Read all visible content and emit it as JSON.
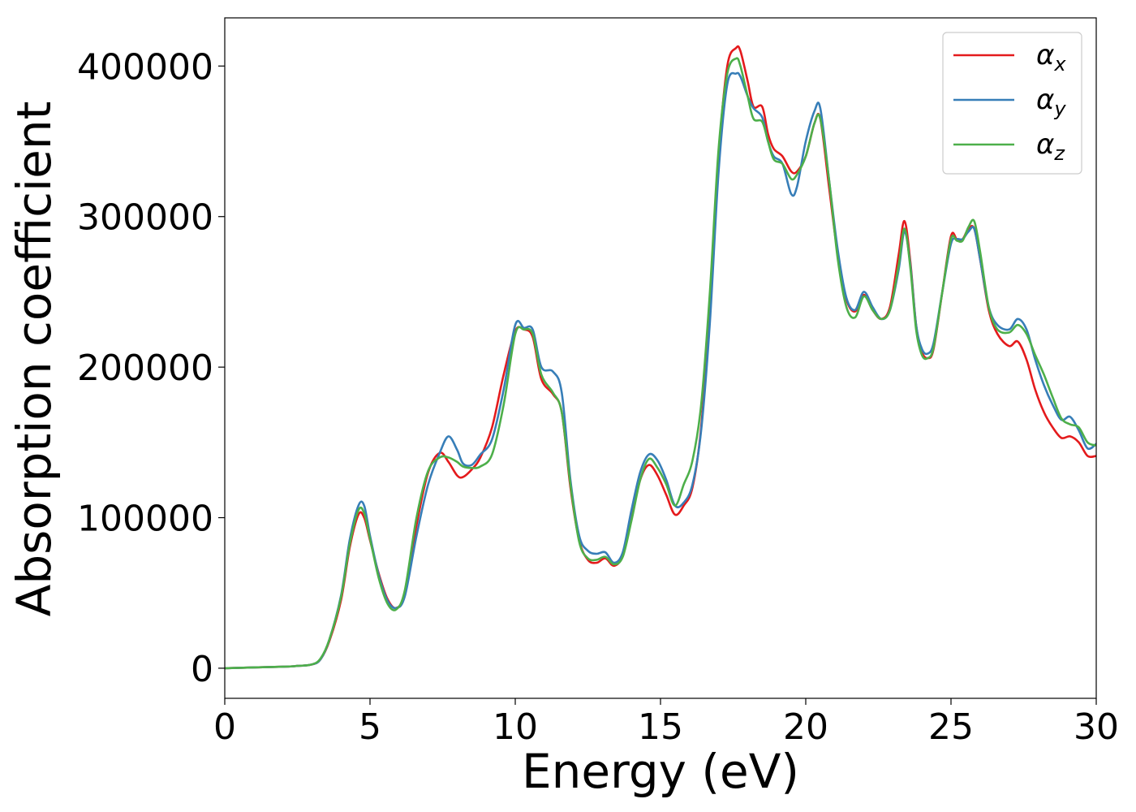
{
  "chart_data": {
    "type": "line",
    "xlabel": "Energy (eV)",
    "ylabel": "Absorption coefficient",
    "xlim": [
      0,
      30
    ],
    "ylim": [
      -20000,
      432000
    ],
    "xticks": [
      0,
      5,
      10,
      15,
      20,
      25,
      30
    ],
    "xtick_labels": [
      "0",
      "5",
      "10",
      "15",
      "20",
      "25",
      "30"
    ],
    "yticks": [
      0,
      100000,
      200000,
      300000,
      400000
    ],
    "ytick_labels": [
      "0",
      "100000",
      "200000",
      "300000",
      "400000"
    ],
    "grid": false,
    "legend_position": "top-right",
    "series": [
      {
        "name": "αx",
        "legend_base": "α",
        "legend_sub": "x",
        "color": "#e41a1c",
        "x": [
          0,
          2,
          2.5,
          3,
          3.3,
          3.6,
          4,
          4.3,
          4.6,
          4.8,
          5,
          5.3,
          5.6,
          5.9,
          6.2,
          6.6,
          7,
          7.4,
          7.7,
          8,
          8.2,
          8.5,
          8.8,
          9.2,
          9.6,
          10,
          10.3,
          10.6,
          10.9,
          11.3,
          11.6,
          11.9,
          12.2,
          12.5,
          12.8,
          13.1,
          13.4,
          13.7,
          14,
          14.3,
          14.6,
          14.9,
          15.2,
          15.5,
          15.8,
          16.1,
          16.4,
          16.7,
          17,
          17.3,
          17.6,
          17.75,
          18,
          18.2,
          18.5,
          18.7,
          18.9,
          19.2,
          19.5,
          19.7,
          20,
          20.3,
          20.5,
          20.8,
          21.1,
          21.4,
          21.7,
          22,
          22.3,
          22.6,
          22.9,
          23.2,
          23.4,
          23.6,
          23.8,
          24,
          24.2,
          24.4,
          24.7,
          25,
          25.2,
          25.4,
          25.6,
          25.8,
          26,
          26.3,
          26.6,
          27,
          27.3,
          27.6,
          27.9,
          28.2,
          28.5,
          28.8,
          29.1,
          29.4,
          29.7,
          30
        ],
        "y": [
          0,
          1000,
          1500,
          2500,
          6000,
          18000,
          45000,
          80000,
          102000,
          100000,
          85000,
          63000,
          46000,
          40000,
          50000,
          95000,
          130000,
          143000,
          137000,
          128000,
          127000,
          132000,
          140000,
          160000,
          195000,
          224000,
          225000,
          220000,
          192000,
          182000,
          170000,
          120000,
          85000,
          72000,
          70000,
          73000,
          68000,
          75000,
          100000,
          125000,
          135000,
          128000,
          115000,
          102000,
          108000,
          120000,
          160000,
          240000,
          340000,
          400000,
          412000,
          410000,
          390000,
          373000,
          373000,
          355000,
          345000,
          340000,
          330000,
          330000,
          340000,
          362000,
          365000,
          320000,
          275000,
          245000,
          237000,
          248000,
          238000,
          232000,
          240000,
          275000,
          297000,
          270000,
          228000,
          210000,
          206000,
          212000,
          250000,
          287000,
          285000,
          285000,
          292000,
          292000,
          272000,
          238000,
          222000,
          214000,
          217000,
          205000,
          185000,
          170000,
          160000,
          153000,
          154000,
          150000,
          141000,
          141000
        ]
      },
      {
        "name": "αy",
        "legend_base": "α",
        "legend_sub": "y",
        "color": "#377eb8",
        "x": [
          0,
          2,
          2.5,
          3,
          3.3,
          3.6,
          4,
          4.3,
          4.6,
          4.8,
          5,
          5.3,
          5.6,
          5.9,
          6.2,
          6.6,
          7,
          7.4,
          7.7,
          8,
          8.2,
          8.5,
          8.8,
          9.2,
          9.6,
          10,
          10.3,
          10.6,
          10.9,
          11.3,
          11.6,
          11.9,
          12.2,
          12.5,
          12.8,
          13.1,
          13.4,
          13.7,
          14,
          14.3,
          14.6,
          14.9,
          15.2,
          15.5,
          15.8,
          16.1,
          16.4,
          16.7,
          17,
          17.3,
          17.6,
          17.75,
          18,
          18.2,
          18.5,
          18.7,
          18.9,
          19.2,
          19.5,
          19.7,
          20,
          20.3,
          20.5,
          20.8,
          21.1,
          21.4,
          21.7,
          22,
          22.3,
          22.6,
          22.9,
          23.2,
          23.4,
          23.6,
          23.8,
          24,
          24.2,
          24.4,
          24.7,
          25,
          25.2,
          25.4,
          25.6,
          25.8,
          26,
          26.3,
          26.6,
          27,
          27.3,
          27.6,
          27.9,
          28.2,
          28.5,
          28.8,
          29.1,
          29.4,
          29.7,
          30
        ],
        "y": [
          0,
          1000,
          1500,
          2500,
          6000,
          19000,
          48000,
          85000,
          108000,
          108000,
          88000,
          62000,
          45000,
          40000,
          48000,
          88000,
          122000,
          143000,
          154000,
          145000,
          136000,
          135000,
          142000,
          152000,
          185000,
          228000,
          226000,
          225000,
          200000,
          197000,
          183000,
          125000,
          88000,
          78000,
          76000,
          77000,
          70000,
          77000,
          105000,
          130000,
          142000,
          138000,
          125000,
          108000,
          110000,
          122000,
          158000,
          230000,
          330000,
          388000,
          395000,
          393000,
          380000,
          372000,
          366000,
          350000,
          340000,
          335000,
          315000,
          320000,
          350000,
          370000,
          372000,
          325000,
          278000,
          246000,
          238000,
          250000,
          240000,
          232000,
          238000,
          265000,
          290000,
          268000,
          228000,
          212000,
          209000,
          216000,
          250000,
          282000,
          285000,
          285000,
          290000,
          292000,
          272000,
          240000,
          228000,
          225000,
          232000,
          225000,
          205000,
          188000,
          175000,
          165000,
          167000,
          158000,
          146000,
          149000
        ]
      },
      {
        "name": "αz",
        "legend_base": "α",
        "legend_sub": "z",
        "color": "#4daf4a",
        "x": [
          0,
          2,
          2.5,
          3,
          3.3,
          3.6,
          4,
          4.3,
          4.6,
          4.8,
          5,
          5.3,
          5.6,
          5.9,
          6.2,
          6.6,
          7,
          7.4,
          7.7,
          8,
          8.2,
          8.5,
          8.8,
          9.2,
          9.6,
          10,
          10.3,
          10.6,
          10.9,
          11.3,
          11.6,
          11.9,
          12.2,
          12.5,
          12.8,
          13.1,
          13.4,
          13.7,
          14,
          14.3,
          14.6,
          14.9,
          15.2,
          15.5,
          15.8,
          16.1,
          16.4,
          16.7,
          17,
          17.3,
          17.6,
          17.75,
          18,
          18.2,
          18.5,
          18.7,
          18.9,
          19.2,
          19.5,
          19.7,
          20,
          20.3,
          20.5,
          20.8,
          21.1,
          21.4,
          21.7,
          22,
          22.3,
          22.6,
          22.9,
          23.2,
          23.4,
          23.6,
          23.8,
          24,
          24.2,
          24.4,
          24.7,
          25,
          25.2,
          25.4,
          25.6,
          25.8,
          26,
          26.3,
          26.6,
          27,
          27.3,
          27.6,
          27.9,
          28.2,
          28.5,
          28.8,
          29.1,
          29.4,
          29.7,
          30
        ],
        "y": [
          0,
          1000,
          1500,
          2500,
          6500,
          19000,
          47000,
          82000,
          105000,
          103000,
          86000,
          60000,
          43000,
          39000,
          52000,
          100000,
          131000,
          140000,
          140000,
          137000,
          134000,
          133000,
          134000,
          142000,
          175000,
          222000,
          225000,
          222000,
          195000,
          183000,
          170000,
          122000,
          84000,
          73000,
          72000,
          74000,
          69000,
          74000,
          98000,
          125000,
          139000,
          133000,
          122000,
          108000,
          122000,
          138000,
          175000,
          250000,
          345000,
          395000,
          405000,
          400000,
          380000,
          365000,
          363000,
          350000,
          338000,
          335000,
          325000,
          328000,
          340000,
          362000,
          365000,
          325000,
          272000,
          240000,
          233000,
          247000,
          238000,
          232000,
          238000,
          268000,
          292000,
          266000,
          225000,
          208000,
          206000,
          213000,
          250000,
          285000,
          284000,
          284000,
          293000,
          297000,
          277000,
          240000,
          225000,
          223000,
          228000,
          222000,
          208000,
          195000,
          180000,
          166000,
          162000,
          160000,
          150000,
          148000
        ]
      }
    ]
  }
}
